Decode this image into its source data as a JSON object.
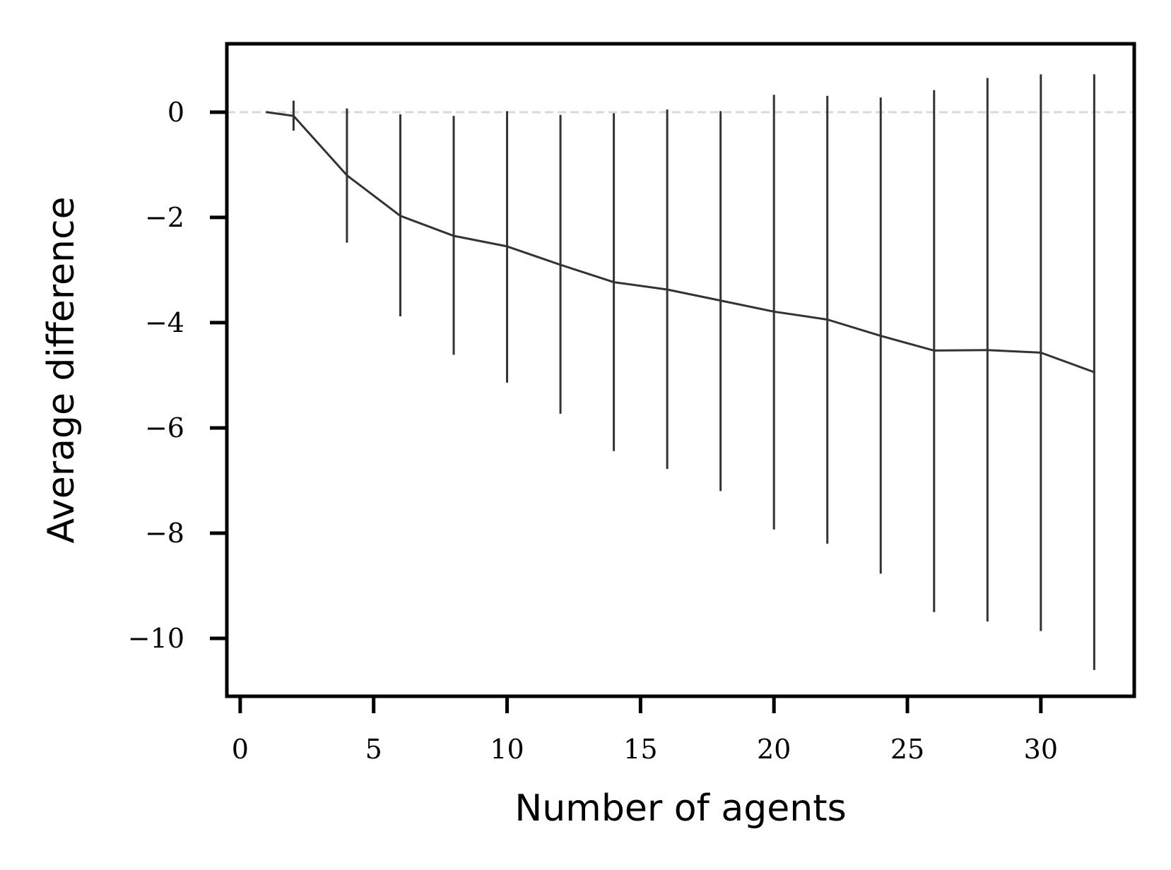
{
  "chart_data": {
    "type": "line",
    "title": "",
    "xlabel": "Number of agents",
    "ylabel": "Average difference",
    "xlim": [
      -0.5,
      33.5
    ],
    "ylim": [
      -11.1,
      1.3
    ],
    "xticks": [
      0,
      5,
      10,
      15,
      20,
      25,
      30
    ],
    "yticks": [
      0,
      -2,
      -4,
      -6,
      -8,
      -10
    ],
    "xtick_labels": [
      "0",
      "5",
      "10",
      "15",
      "20",
      "25",
      "30"
    ],
    "ytick_labels": [
      "0",
      "−2",
      "−4",
      "−6",
      "−8",
      "−10"
    ],
    "reference_line": {
      "y": 0,
      "style": "dashed",
      "color": "#d9d9d9"
    },
    "grid": false,
    "legend": "none",
    "colors": {
      "series": "#333333",
      "axes": "#000000"
    },
    "series": [
      {
        "x": [
          1,
          2,
          4,
          6,
          8,
          10,
          12,
          14,
          16,
          18,
          20,
          22,
          24,
          26,
          28,
          30,
          32
        ],
        "y": [
          0,
          -0.07,
          -1.2,
          -1.97,
          -2.35,
          -2.55,
          -2.9,
          -3.23,
          -3.37,
          -3.58,
          -3.79,
          -3.94,
          -4.25,
          -4.53,
          -4.52,
          -4.57,
          -4.94
        ]
      }
    ],
    "error_bars": {
      "x": [
        2,
        4,
        6,
        8,
        10,
        12,
        14,
        16,
        18,
        20,
        22,
        24,
        26,
        28,
        30,
        32
      ],
      "lower": [
        -0.35,
        -2.48,
        -3.88,
        -4.61,
        -5.14,
        -5.73,
        -6.44,
        -6.78,
        -7.2,
        -7.93,
        -8.2,
        -8.77,
        -9.5,
        -9.68,
        -9.86,
        -10.6
      ],
      "upper": [
        0.22,
        0.07,
        -0.04,
        -0.07,
        0.02,
        -0.05,
        -0.02,
        0.05,
        0.02,
        0.33,
        0.31,
        0.28,
        0.42,
        0.65,
        0.72,
        0.72
      ]
    }
  }
}
